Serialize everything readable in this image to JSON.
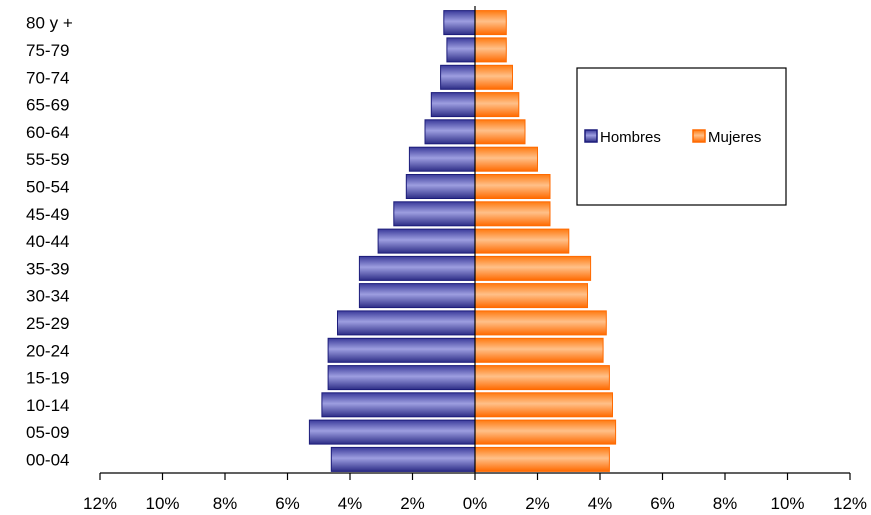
{
  "chart_data": {
    "type": "bar",
    "orientation": "horizontal",
    "subtype": "population-pyramid",
    "categories": [
      "00-04",
      "05-09",
      "10-14",
      "15-19",
      "20-24",
      "25-29",
      "30-34",
      "35-39",
      "40-44",
      "45-49",
      "50-54",
      "55-59",
      "60-64",
      "65-69",
      "70-74",
      "75-79",
      "80 y +"
    ],
    "series": [
      {
        "name": "Hombres",
        "side": "left",
        "color": "#1c1c7a",
        "values": [
          4.6,
          5.3,
          4.9,
          4.7,
          4.7,
          4.4,
          3.7,
          3.7,
          3.1,
          2.6,
          2.2,
          2.1,
          1.6,
          1.4,
          1.1,
          0.9,
          1.0
        ]
      },
      {
        "name": "Mujeres",
        "side": "right",
        "color": "#ff6a00",
        "values": [
          4.3,
          4.5,
          4.4,
          4.3,
          4.1,
          4.2,
          3.6,
          3.7,
          3.0,
          2.4,
          2.4,
          2.0,
          1.6,
          1.4,
          1.2,
          1.0,
          1.0
        ]
      }
    ],
    "xlim": [
      -12,
      12
    ],
    "xticks": [
      "12%",
      "10%",
      "8%",
      "6%",
      "4%",
      "2%",
      "0%",
      "2%",
      "4%",
      "6%",
      "8%",
      "10%",
      "12%"
    ],
    "grid": false,
    "legend_position": "right"
  }
}
